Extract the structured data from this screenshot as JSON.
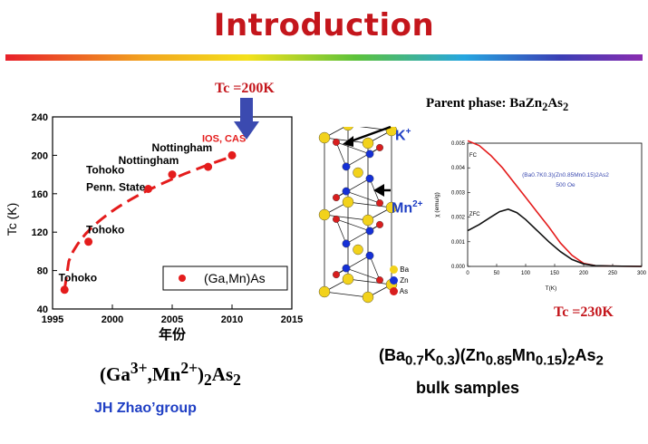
{
  "slide": {
    "title": "Introduction",
    "tc_left_label": "Tc =200K",
    "formula_left_html": "(Ga<sup>3+</sup>,Mn<sup>2+</sup>)<sub>2</sub>As<sub>2</sub>",
    "group_label": "JH Zhao’group",
    "parent_phase_html": "Parent phase: BaZn<sub>2</sub>As<sub>2</sub>",
    "tc_right_label": "Tc =230K",
    "formula_right_html": "(Ba<sub>0.7</sub>K<sub>0.3</sub>)(Zn<sub>0.85</sub>Mn<sub>0.15</sub>)<sub>2</sub>As<sub>2</sub>",
    "bulk_label": "bulk samples",
    "k_label": "K+",
    "mn_label": "Mn2+"
  },
  "crystal_legend": [
    "Ba",
    "Zn",
    "As"
  ],
  "colors": {
    "title": "#c4161c",
    "ba": "#f2d21b",
    "zn": "#1530d6",
    "as": "#d81e1e",
    "arrow": "#3b4ab0"
  },
  "chart_data": [
    {
      "type": "scatter",
      "title": "",
      "xlabel": "年份",
      "ylabel": "Tc (K)",
      "xlim": [
        1995,
        2015
      ],
      "ylim": [
        40,
        240
      ],
      "xticks": [
        1995,
        2000,
        2005,
        2010,
        2015
      ],
      "yticks": [
        40,
        80,
        120,
        160,
        200,
        240
      ],
      "legend": "(Ga,Mn)As",
      "series": [
        {
          "name": "(Ga,Mn)As",
          "x": [
            1996,
            1998,
            2003,
            2005,
            2008,
            2010
          ],
          "y": [
            60,
            110,
            165,
            180,
            188,
            200
          ]
        }
      ],
      "annotations": [
        {
          "text": "Tohoko",
          "x": 1995.5,
          "y": 69
        },
        {
          "text": "Tohoko",
          "x": 1997.8,
          "y": 119
        },
        {
          "text": "Penn. State",
          "x": 1997.8,
          "y": 163
        },
        {
          "text": "Tohoko",
          "x": 1997.8,
          "y": 181
        },
        {
          "text": "Nottingham",
          "x": 2000.5,
          "y": 191
        },
        {
          "text": "Nottingham",
          "x": 2003.3,
          "y": 204
        },
        {
          "text": "IOS, CAS",
          "x": 2007.5,
          "y": 214
        }
      ]
    },
    {
      "type": "line",
      "title": "",
      "xlabel": "T(K)",
      "ylabel": "χ (emu/g)",
      "xlim": [
        0,
        300
      ],
      "ylim": [
        0,
        0.005
      ],
      "xticks": [
        0,
        50,
        100,
        150,
        200,
        250,
        300
      ],
      "yticks": [
        0.0,
        0.001,
        0.002,
        0.003,
        0.004,
        0.005
      ],
      "annotation": "(Ba0.7K0.3)(Zn0.85Mn0.15)2As2",
      "annotation2": "500 Oe",
      "series": [
        {
          "name": "FC",
          "x": [
            0,
            20,
            40,
            60,
            80,
            100,
            120,
            140,
            160,
            180,
            200,
            220,
            250,
            300
          ],
          "y": [
            0.0051,
            0.0049,
            0.0045,
            0.004,
            0.0034,
            0.0028,
            0.0022,
            0.0016,
            0.00095,
            0.00045,
            0.00012,
            3e-05,
            1e-05,
            0.0
          ]
        },
        {
          "name": "ZFC",
          "x": [
            0,
            20,
            40,
            55,
            70,
            85,
            100,
            120,
            140,
            160,
            180,
            200,
            220,
            250,
            300
          ],
          "y": [
            0.00145,
            0.0017,
            0.002,
            0.00222,
            0.00232,
            0.00218,
            0.0019,
            0.00145,
            0.001,
            0.0006,
            0.00028,
            0.0001,
            3e-05,
            1e-05,
            0.0
          ]
        }
      ]
    }
  ]
}
